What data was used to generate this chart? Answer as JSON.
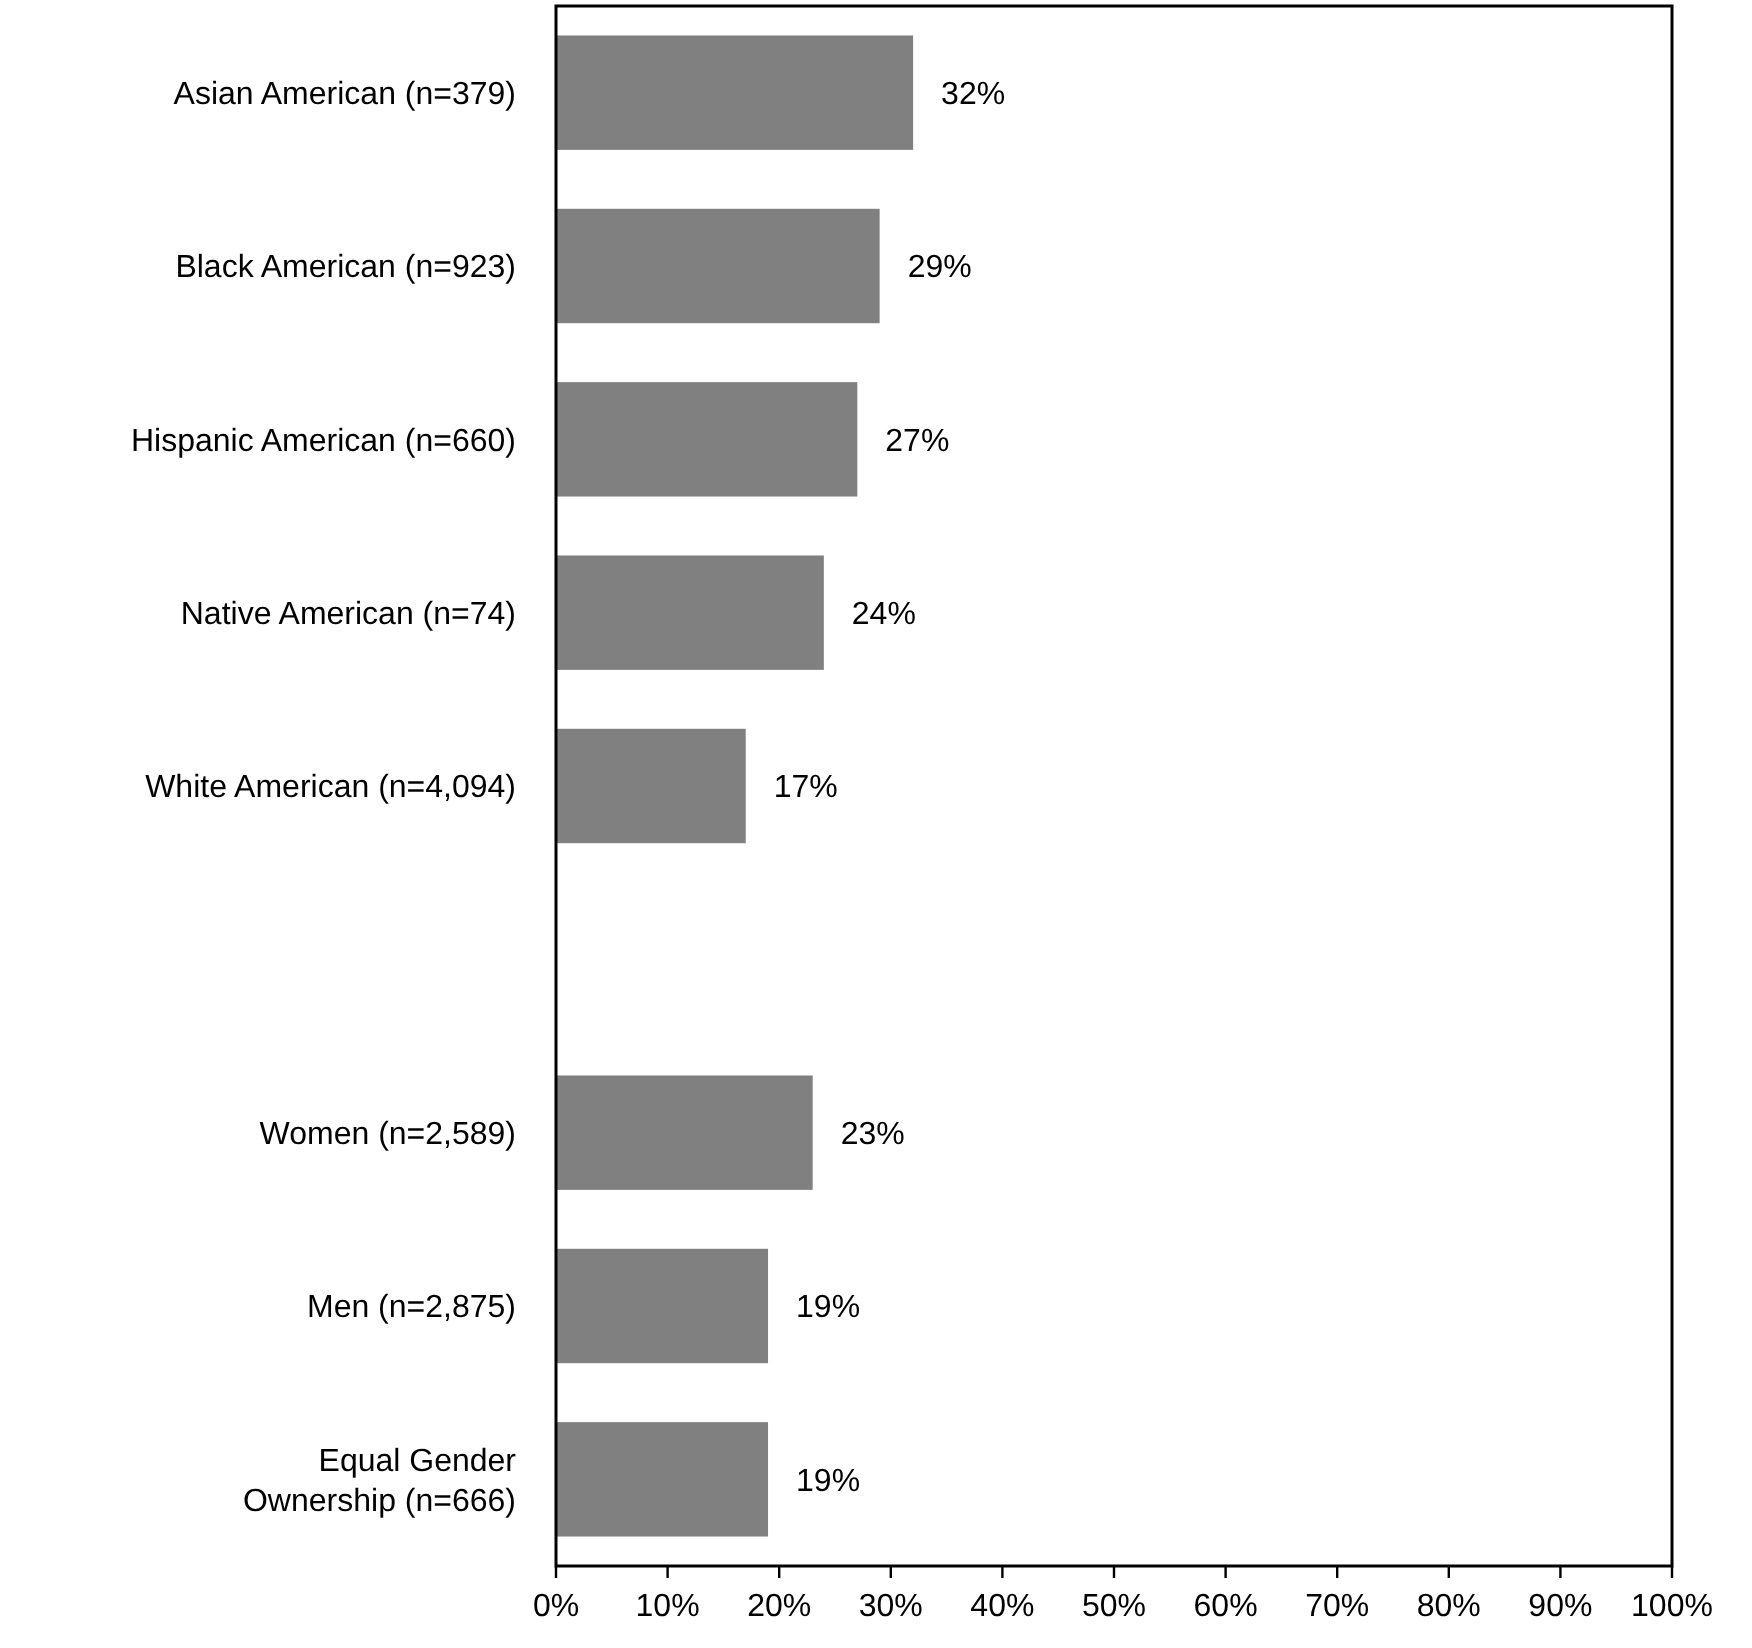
{
  "chart_data": {
    "type": "bar",
    "orientation": "horizontal",
    "categories": [
      "Asian American (n=379)",
      "Black American (n=923)",
      "Hispanic American (n=660)",
      "Native American (n=74)",
      "White American (n=4,094)",
      null,
      "Women (n=2,589)",
      "Men (n=2,875)",
      "Equal Gender Ownership (n=666)"
    ],
    "values": [
      32,
      29,
      27,
      24,
      17,
      null,
      23,
      19,
      19
    ],
    "value_labels": [
      "32%",
      "29%",
      "27%",
      "24%",
      "17%",
      null,
      "23%",
      "19%",
      "19%"
    ],
    "color": "#808080",
    "xlim": [
      0,
      100
    ],
    "xticks": [
      {
        "value": 0,
        "label": "0%"
      },
      {
        "value": 10,
        "label": "10%"
      },
      {
        "value": 20,
        "label": "20%"
      },
      {
        "value": 30,
        "label": "30%"
      },
      {
        "value": 40,
        "label": "40%"
      },
      {
        "value": 50,
        "label": "50%"
      },
      {
        "value": 60,
        "label": "60%"
      },
      {
        "value": 70,
        "label": "70%"
      },
      {
        "value": 80,
        "label": "80%"
      },
      {
        "value": 90,
        "label": "90%"
      },
      {
        "value": 100,
        "label": "100%"
      }
    ],
    "grid": false
  }
}
